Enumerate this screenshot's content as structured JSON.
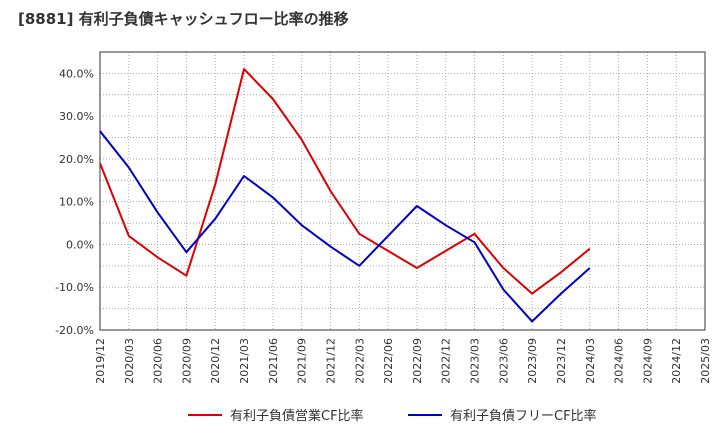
{
  "chart_data": {
    "type": "line",
    "title": "[8881]  有利子負債キャッシュフロー比率の推移",
    "x": [
      "2019/12",
      "2020/03",
      "2020/06",
      "2020/09",
      "2020/12",
      "2021/03",
      "2021/06",
      "2021/09",
      "2021/12",
      "2022/03",
      "2022/06",
      "2022/09",
      "2022/12",
      "2023/03",
      "2023/06",
      "2023/09",
      "2023/12",
      "2024/03",
      "2024/06",
      "2024/09",
      "2024/12",
      "2025/03"
    ],
    "ylim": [
      -20,
      45
    ],
    "yticks": [
      -20,
      -10,
      0,
      10,
      20,
      30,
      40
    ],
    "ytick_labels": [
      "-20.0%",
      "-10.0%",
      "0.0%",
      "10.0%",
      "20.0%",
      "30.0%",
      "40.0%"
    ],
    "grid": true,
    "legend_position": "bottom",
    "series": [
      {
        "name": "有利子負債営業CF比率",
        "color": "#dd0000",
        "values": [
          19.0,
          2.0,
          -3.0,
          -7.3,
          14.0,
          41.0,
          34.0,
          24.5,
          12.5,
          2.5,
          -1.5,
          -5.5,
          -1.5,
          2.5,
          -5.5,
          -11.5,
          -6.5,
          -1.0,
          null,
          null,
          null,
          null
        ]
      },
      {
        "name": "有利子負債フリーCF比率",
        "color": "#0000cc",
        "values": [
          26.5,
          18.0,
          7.5,
          -1.8,
          6.0,
          16.0,
          11.0,
          4.5,
          -0.5,
          -5.0,
          2.0,
          9.0,
          4.5,
          0.5,
          -10.5,
          -18.0,
          -11.5,
          -5.5,
          null,
          null,
          null,
          null
        ]
      }
    ]
  }
}
